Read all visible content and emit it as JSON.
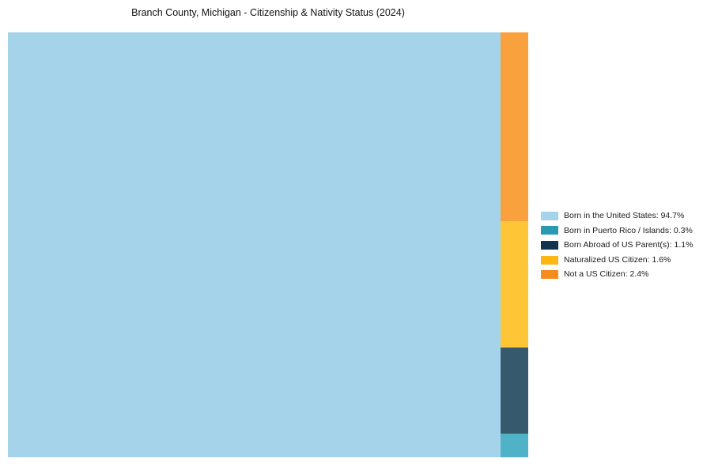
{
  "chart_data": {
    "type": "treemap",
    "title": "Branch County, Michigan - Citizenship & Nativity Status (2024)",
    "unit": "%",
    "legend_position": "right",
    "layout": "single large tile left, minority categories stacked in right column top-to-bottom in reverse legend order",
    "categories": [
      {
        "label": "Born in the United States",
        "value": 94.7,
        "display": "Born in the United States: 94.7%",
        "legend_color": "#a5d4ea",
        "tile_color": "#a5d4ea"
      },
      {
        "label": "Born in Puerto Rico / Islands",
        "value": 0.3,
        "display": "Born in Puerto Rico / Islands: 0.3%",
        "legend_color": "#2a99b3",
        "tile_color": "#4fb2c7"
      },
      {
        "label": "Born Abroad of US Parent(s)",
        "value": 1.1,
        "display": "Born Abroad of US Parent(s): 1.1%",
        "legend_color": "#12344f",
        "tile_color": "#36596e"
      },
      {
        "label": "Naturalized US Citizen",
        "value": 1.6,
        "display": "Naturalized US Citizen: 1.6%",
        "legend_color": "#fdb713",
        "tile_color": "#fec636"
      },
      {
        "label": "Not a US Citizen",
        "value": 2.4,
        "display": "Not a US Citizen: 2.4%",
        "legend_color": "#f68b1e",
        "tile_color": "#f9a13c"
      }
    ]
  }
}
